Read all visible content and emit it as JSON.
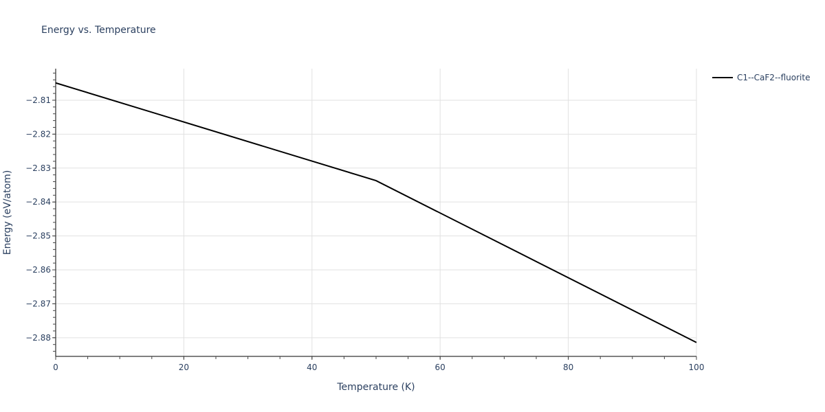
{
  "chart_data": {
    "type": "line",
    "title": "Energy vs. Temperature",
    "xlabel": "Temperature (K)",
    "ylabel": "Energy (eV/atom)",
    "xlim": [
      0,
      100
    ],
    "ylim": [
      -2.8855,
      -2.8007
    ],
    "x_ticks": [
      0,
      20,
      40,
      60,
      80,
      100
    ],
    "x_tick_labels": [
      "0",
      "20",
      "40",
      "60",
      "80",
      "100"
    ],
    "y_ticks": [
      -2.81,
      -2.82,
      -2.83,
      -2.84,
      -2.85,
      -2.86,
      -2.87,
      -2.88
    ],
    "y_tick_labels": [
      "−2.81",
      "−2.82",
      "−2.83",
      "−2.84",
      "−2.85",
      "−2.86",
      "−2.87",
      "−2.88"
    ],
    "grid": true,
    "legend_position": "right-top",
    "series": [
      {
        "name": "C1--CaF2--fluorite",
        "color": "#000000",
        "x": [
          0,
          50,
          100
        ],
        "y": [
          -2.8049,
          -2.8337,
          -2.8814
        ]
      }
    ]
  }
}
